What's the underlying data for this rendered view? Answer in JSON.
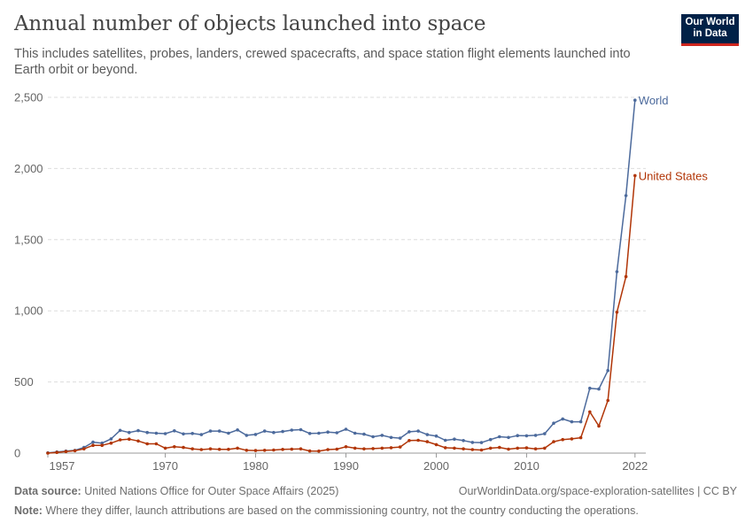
{
  "header": {
    "title": "Annual number of objects launched into space",
    "subtitle": "This includes satellites, probes, landers, crewed spacecrafts, and space station flight elements launched into Earth orbit or beyond."
  },
  "logo": {
    "line1": "Our World",
    "line2": "in Data"
  },
  "footer": {
    "source_label": "Data source:",
    "source_text": "United Nations Office for Outer Space Affairs (2025)",
    "credit": "OurWorldinData.org/space-exploration-satellites | CC BY",
    "note_label": "Note:",
    "note_text": "Where they differ, launch attributions are based on the commissioning country, not the country conducting the operations."
  },
  "chart_data": {
    "type": "line",
    "title": "Annual number of objects launched into space",
    "xlabel": "",
    "ylabel": "",
    "xlim": [
      1957,
      2023
    ],
    "ylim": [
      0,
      2500
    ],
    "x_ticks": [
      1957,
      1970,
      1980,
      1990,
      2000,
      2010,
      2022
    ],
    "y_ticks": [
      0,
      500,
      1000,
      1500,
      2000,
      2500
    ],
    "y_tick_labels": [
      "0",
      "500",
      "1,000",
      "1,500",
      "2,000",
      "2,500"
    ],
    "grid": "horizontal",
    "legend": "line-end labels",
    "x": [
      1957,
      1958,
      1959,
      1960,
      1961,
      1962,
      1963,
      1964,
      1965,
      1966,
      1967,
      1968,
      1969,
      1970,
      1971,
      1972,
      1973,
      1974,
      1975,
      1976,
      1977,
      1978,
      1979,
      1980,
      1981,
      1982,
      1983,
      1984,
      1985,
      1986,
      1987,
      1988,
      1989,
      1990,
      1991,
      1992,
      1993,
      1994,
      1995,
      1996,
      1997,
      1998,
      1999,
      2000,
      2001,
      2002,
      2003,
      2004,
      2005,
      2006,
      2007,
      2008,
      2009,
      2010,
      2011,
      2012,
      2013,
      2014,
      2015,
      2016,
      2017,
      2018,
      2019,
      2020,
      2021,
      2022,
      2023
    ],
    "series": [
      {
        "name": "World",
        "color": "#4c6a9c",
        "values": [
          2,
          8,
          14,
          19,
          40,
          77,
          70,
          100,
          160,
          145,
          158,
          145,
          140,
          137,
          157,
          135,
          138,
          130,
          155,
          155,
          140,
          163,
          125,
          131,
          155,
          145,
          152,
          162,
          165,
          138,
          140,
          148,
          143,
          168,
          140,
          133,
          115,
          125,
          110,
          105,
          150,
          155,
          130,
          120,
          90,
          98,
          88,
          75,
          74,
          95,
          115,
          110,
          123,
          122,
          125,
          136,
          210,
          240,
          220,
          220,
          456,
          450,
          580,
          1275,
          1810,
          2480,
          null
        ]
      },
      {
        "name": "United States",
        "color": "#b13507",
        "values": [
          0,
          5,
          11,
          17,
          30,
          55,
          55,
          70,
          93,
          98,
          85,
          65,
          65,
          35,
          45,
          40,
          30,
          25,
          30,
          27,
          27,
          35,
          20,
          18,
          20,
          22,
          26,
          28,
          30,
          15,
          14,
          25,
          28,
          45,
          35,
          30,
          32,
          35,
          38,
          43,
          88,
          90,
          80,
          60,
          38,
          35,
          30,
          25,
          22,
          35,
          40,
          28,
          35,
          37,
          30,
          35,
          80,
          95,
          100,
          108,
          290,
          190,
          370,
          990,
          1240,
          1950,
          null
        ]
      }
    ]
  }
}
